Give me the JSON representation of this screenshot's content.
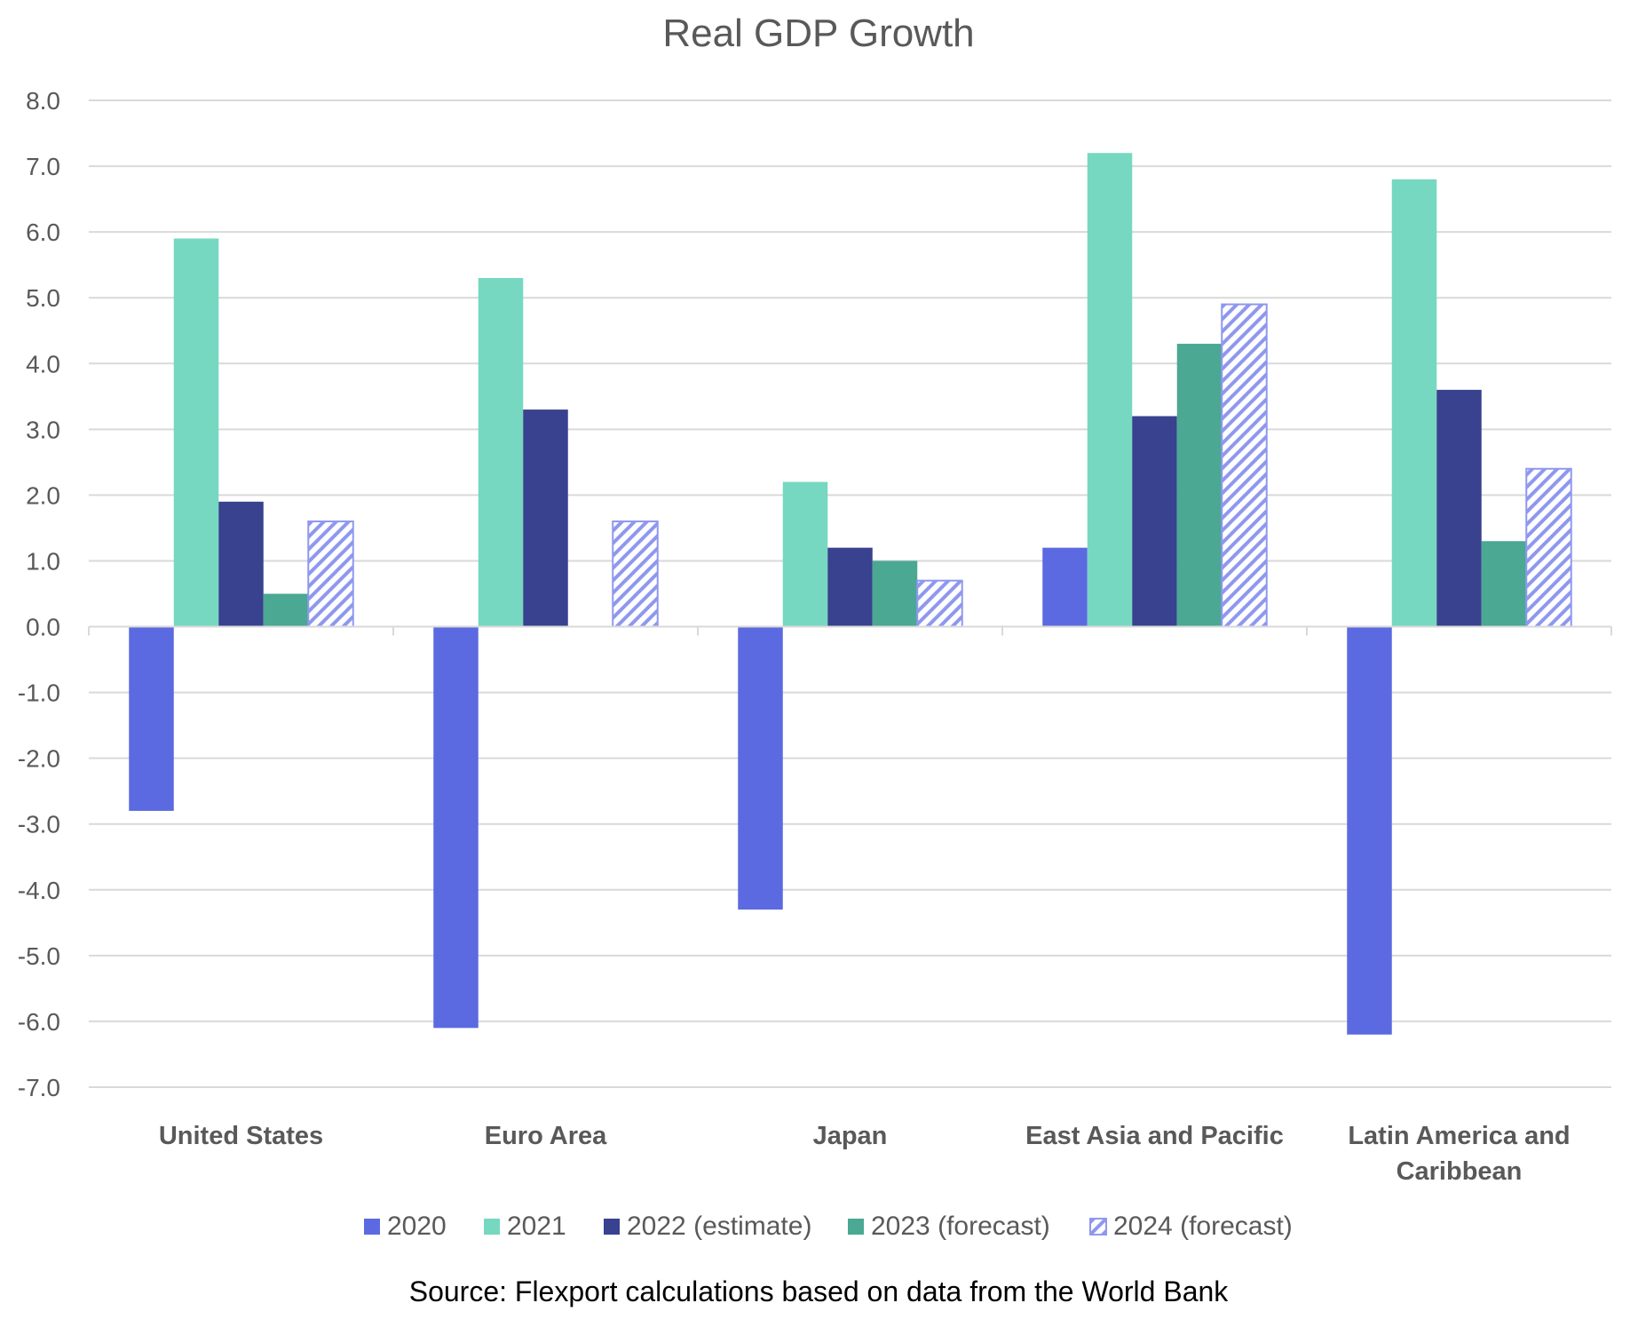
{
  "chart_data": {
    "type": "bar",
    "title": "Real GDP Growth",
    "source": "Source: Flexport calculations based on data from the World Bank",
    "categories": [
      [
        "United States"
      ],
      [
        "Euro Area"
      ],
      [
        "Japan"
      ],
      [
        "East Asia and Pacific"
      ],
      [
        "Latin America and",
        "Caribbean"
      ]
    ],
    "ylim": [
      -7.0,
      8.0
    ],
    "yticks": [
      "8.0",
      "7.0",
      "6.0",
      "5.0",
      "4.0",
      "3.0",
      "2.0",
      "1.0",
      "0.0",
      "-1.0",
      "-2.0",
      "-3.0",
      "-4.0",
      "-5.0",
      "-6.0",
      "-7.0"
    ],
    "legend_position": "bottom",
    "grid": true,
    "series": [
      {
        "name": "2020",
        "color": "#5b6ae0",
        "pattern": "solid",
        "values": [
          -2.8,
          -6.1,
          -4.3,
          1.2,
          -6.2
        ]
      },
      {
        "name": "2021",
        "color": "#76d8c0",
        "pattern": "solid",
        "values": [
          5.9,
          5.3,
          2.2,
          7.2,
          6.8
        ]
      },
      {
        "name": "2022 (estimate)",
        "color": "#38428e",
        "pattern": "solid",
        "values": [
          1.9,
          3.3,
          1.2,
          3.2,
          3.6
        ]
      },
      {
        "name": "2023 (forecast)",
        "color": "#4aa893",
        "pattern": "solid",
        "values": [
          0.5,
          null,
          1.0,
          4.3,
          1.3
        ]
      },
      {
        "name": "2024 (forecast)",
        "color": "#8f98ef",
        "pattern": "hatch",
        "values": [
          1.6,
          1.6,
          0.7,
          4.9,
          2.4
        ]
      }
    ]
  }
}
